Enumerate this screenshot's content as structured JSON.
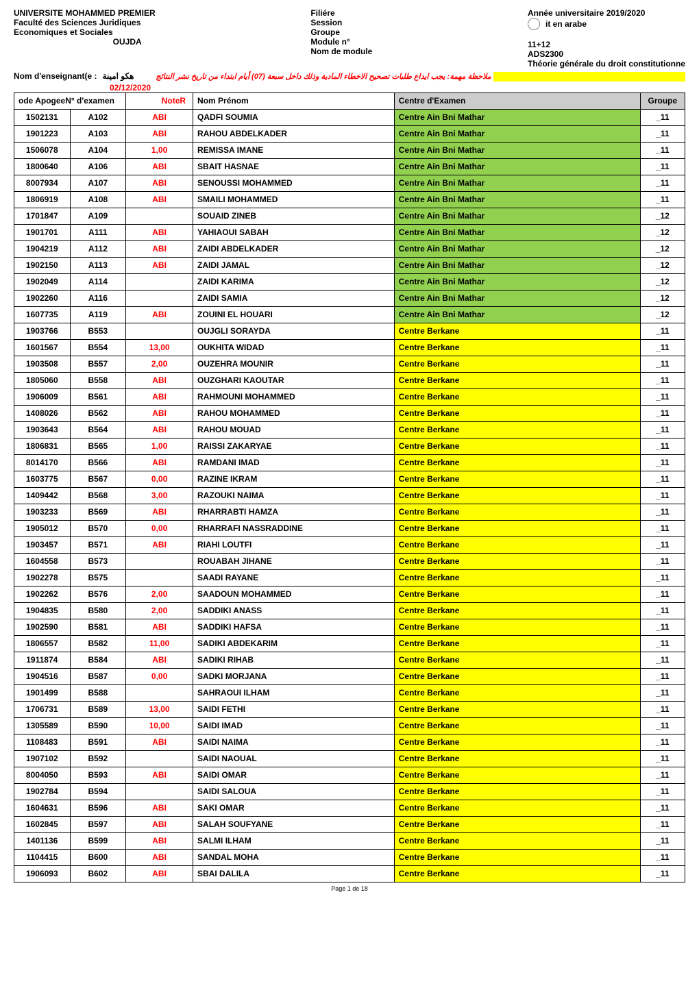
{
  "header": {
    "university": "UNIVERSITE MOHAMMED PREMIER",
    "faculty": "Faculté des Sciences Juridiques",
    "dept": "Economiques et Sociales",
    "city": "OUJDA",
    "filiere_label": "Filiére",
    "session_label": "Session",
    "groupe_label": "Groupe",
    "module_no_label": "Module n°",
    "module_name_label": "Nom de module",
    "year_label": "Année universitaire 2019/2020",
    "filiere_arabic": "it en arabe",
    "groupe_value": "11+12",
    "module_no_value": "ADS2300",
    "module_name_value": "Théorie générale du droit constitutionne"
  },
  "instructor": {
    "label": "Nom d'enseignant(e :",
    "name": "هكو امينة",
    "note": "ملاحظة مهمة: يجب ايداع طلبات تصحيح الاخطاء المادية  وذلك داخل سبعة (07)  أيام ابتداء من تاريخ نشر النتائج",
    "date": "02/12/2020"
  },
  "columns": {
    "apogee": "ode ApogeeN° d'examen",
    "note": "NoteR",
    "nom": "Nom Prénom",
    "centre": "Centre d'Examen",
    "groupe": "Groupe"
  },
  "centres": {
    "mathar": "Centre Ain Bni Mathar",
    "berkane": "Centre Berkane"
  },
  "rows": [
    {
      "apogee": "1502131",
      "examen": "A102",
      "note": "ABI",
      "nom": "QADFI SOUMIA",
      "centre": "mathar",
      "groupe": "_11"
    },
    {
      "apogee": "1901223",
      "examen": "A103",
      "note": "ABI",
      "nom": "RAHOU ABDELKADER",
      "centre": "mathar",
      "groupe": "_11"
    },
    {
      "apogee": "1506078",
      "examen": "A104",
      "note": "1,00",
      "nom": "REMISSA IMANE",
      "centre": "mathar",
      "groupe": "_11"
    },
    {
      "apogee": "1800640",
      "examen": "A106",
      "note": "ABI",
      "nom": "SBAIT HASNAE",
      "centre": "mathar",
      "groupe": "_11"
    },
    {
      "apogee": "8007934",
      "examen": "A107",
      "note": "ABI",
      "nom": "SENOUSSI MOHAMMED",
      "centre": "mathar",
      "groupe": "_11"
    },
    {
      "apogee": "1806919",
      "examen": "A108",
      "note": "ABI",
      "nom": "SMAILI MOHAMMED",
      "centre": "mathar",
      "groupe": "_11"
    },
    {
      "apogee": "1701847",
      "examen": "A109",
      "note": "",
      "nom": "SOUAID ZINEB",
      "centre": "mathar",
      "groupe": "_12"
    },
    {
      "apogee": "1901701",
      "examen": "A111",
      "note": "ABI",
      "nom": "YAHIAOUI SABAH",
      "centre": "mathar",
      "groupe": "_12"
    },
    {
      "apogee": "1904219",
      "examen": "A112",
      "note": "ABI",
      "nom": "ZAIDI ABDELKADER",
      "centre": "mathar",
      "groupe": "_12"
    },
    {
      "apogee": "1902150",
      "examen": "A113",
      "note": "ABI",
      "nom": "ZAIDI JAMAL",
      "centre": "mathar",
      "groupe": "_12"
    },
    {
      "apogee": "1902049",
      "examen": "A114",
      "note": "",
      "nom": "ZAIDI KARIMA",
      "centre": "mathar",
      "groupe": "_12"
    },
    {
      "apogee": "1902260",
      "examen": "A116",
      "note": "",
      "nom": "ZAIDI SAMIA",
      "centre": "mathar",
      "groupe": "_12"
    },
    {
      "apogee": "1607735",
      "examen": "A119",
      "note": "ABI",
      "nom": "ZOUINI EL HOUARI",
      "centre": "mathar",
      "groupe": "_12"
    },
    {
      "apogee": "1903766",
      "examen": "B553",
      "note": "",
      "nom": "OUJGLI SORAYDA",
      "centre": "berkane",
      "groupe": "_11"
    },
    {
      "apogee": "1601567",
      "examen": "B554",
      "note": "13,00",
      "nom": "OUKHITA WIDAD",
      "centre": "berkane",
      "groupe": "_11"
    },
    {
      "apogee": "1903508",
      "examen": "B557",
      "note": "2,00",
      "nom": "OUZEHRA MOUNIR",
      "centre": "berkane",
      "groupe": "_11"
    },
    {
      "apogee": "1805060",
      "examen": "B558",
      "note": "ABI",
      "nom": "OUZGHARI KAOUTAR",
      "centre": "berkane",
      "groupe": "_11"
    },
    {
      "apogee": "1906009",
      "examen": "B561",
      "note": "ABI",
      "nom": "RAHMOUNI MOHAMMED",
      "centre": "berkane",
      "groupe": "_11"
    },
    {
      "apogee": "1408026",
      "examen": "B562",
      "note": "ABI",
      "nom": "RAHOU MOHAMMED",
      "centre": "berkane",
      "groupe": "_11"
    },
    {
      "apogee": "1903643",
      "examen": "B564",
      "note": "ABI",
      "nom": "RAHOU MOUAD",
      "centre": "berkane",
      "groupe": "_11"
    },
    {
      "apogee": "1806831",
      "examen": "B565",
      "note": "1,00",
      "nom": "RAISSI ZAKARYAE",
      "centre": "berkane",
      "groupe": "_11"
    },
    {
      "apogee": "8014170",
      "examen": "B566",
      "note": "ABI",
      "nom": "RAMDANI IMAD",
      "centre": "berkane",
      "groupe": "_11"
    },
    {
      "apogee": "1603775",
      "examen": "B567",
      "note": "0,00",
      "nom": "RAZINE IKRAM",
      "centre": "berkane",
      "groupe": "_11"
    },
    {
      "apogee": "1409442",
      "examen": "B568",
      "note": "3,00",
      "nom": "RAZOUKI NAIMA",
      "centre": "berkane",
      "groupe": "_11"
    },
    {
      "apogee": "1903233",
      "examen": "B569",
      "note": "ABI",
      "nom": "RHARRABTI HAMZA",
      "centre": "berkane",
      "groupe": "_11"
    },
    {
      "apogee": "1905012",
      "examen": "B570",
      "note": "0,00",
      "nom": "RHARRAFI NASSRADDINE",
      "centre": "berkane",
      "groupe": "_11"
    },
    {
      "apogee": "1903457",
      "examen": "B571",
      "note": "ABI",
      "nom": "RIAHI LOUTFI",
      "centre": "berkane",
      "groupe": "_11"
    },
    {
      "apogee": "1604558",
      "examen": "B573",
      "note": "",
      "nom": "ROUABAH JIHANE",
      "centre": "berkane",
      "groupe": "_11"
    },
    {
      "apogee": "1902278",
      "examen": "B575",
      "note": "",
      "nom": "SAADI RAYANE",
      "centre": "berkane",
      "groupe": "_11"
    },
    {
      "apogee": "1902262",
      "examen": "B576",
      "note": "2,00",
      "nom": "SAADOUN MOHAMMED",
      "centre": "berkane",
      "groupe": "_11"
    },
    {
      "apogee": "1904835",
      "examen": "B580",
      "note": "2,00",
      "nom": "SADDIKI ANASS",
      "centre": "berkane",
      "groupe": "_11"
    },
    {
      "apogee": "1902590",
      "examen": "B581",
      "note": "ABI",
      "nom": "SADDIKI HAFSA",
      "centre": "berkane",
      "groupe": "_11"
    },
    {
      "apogee": "1806557",
      "examen": "B582",
      "note": "11,00",
      "nom": "SADIKI ABDEKARIM",
      "centre": "berkane",
      "groupe": "_11"
    },
    {
      "apogee": "1911874",
      "examen": "B584",
      "note": "ABI",
      "nom": "SADIKI RIHAB",
      "centre": "berkane",
      "groupe": "_11"
    },
    {
      "apogee": "1904516",
      "examen": "B587",
      "note": "0,00",
      "nom": "SADKI MORJANA",
      "centre": "berkane",
      "groupe": "_11"
    },
    {
      "apogee": "1901499",
      "examen": "B588",
      "note": "",
      "nom": "SAHRAOUI ILHAM",
      "centre": "berkane",
      "groupe": "_11"
    },
    {
      "apogee": "1706731",
      "examen": "B589",
      "note": "13,00",
      "nom": "SAIDI FETHI",
      "centre": "berkane",
      "groupe": "_11"
    },
    {
      "apogee": "1305589",
      "examen": "B590",
      "note": "10,00",
      "nom": "SAIDI IMAD",
      "centre": "berkane",
      "groupe": "_11"
    },
    {
      "apogee": "1108483",
      "examen": "B591",
      "note": "ABI",
      "nom": "SAIDI NAIMA",
      "centre": "berkane",
      "groupe": "_11"
    },
    {
      "apogee": "1907102",
      "examen": "B592",
      "note": "",
      "nom": "SAIDI NAOUAL",
      "centre": "berkane",
      "groupe": "_11"
    },
    {
      "apogee": "8004050",
      "examen": "B593",
      "note": "ABI",
      "nom": "SAIDI OMAR",
      "centre": "berkane",
      "groupe": "_11"
    },
    {
      "apogee": "1902784",
      "examen": "B594",
      "note": "",
      "nom": "SAIDI SALOUA",
      "centre": "berkane",
      "groupe": "_11"
    },
    {
      "apogee": "1604631",
      "examen": "B596",
      "note": "ABI",
      "nom": "SAKI OMAR",
      "centre": "berkane",
      "groupe": "_11"
    },
    {
      "apogee": "1602845",
      "examen": "B597",
      "note": "ABI",
      "nom": "SALAH SOUFYANE",
      "centre": "berkane",
      "groupe": "_11"
    },
    {
      "apogee": "1401136",
      "examen": "B599",
      "note": "ABI",
      "nom": "SALMI ILHAM",
      "centre": "berkane",
      "groupe": "_11"
    },
    {
      "apogee": "1104415",
      "examen": "B600",
      "note": "ABI",
      "nom": "SANDAL MOHA",
      "centre": "berkane",
      "groupe": "_11"
    },
    {
      "apogee": "1906093",
      "examen": "B602",
      "note": "ABI",
      "nom": "SBAI DALILA",
      "centre": "berkane",
      "groupe": "_11"
    }
  ],
  "footer": "Page 1 de 18"
}
